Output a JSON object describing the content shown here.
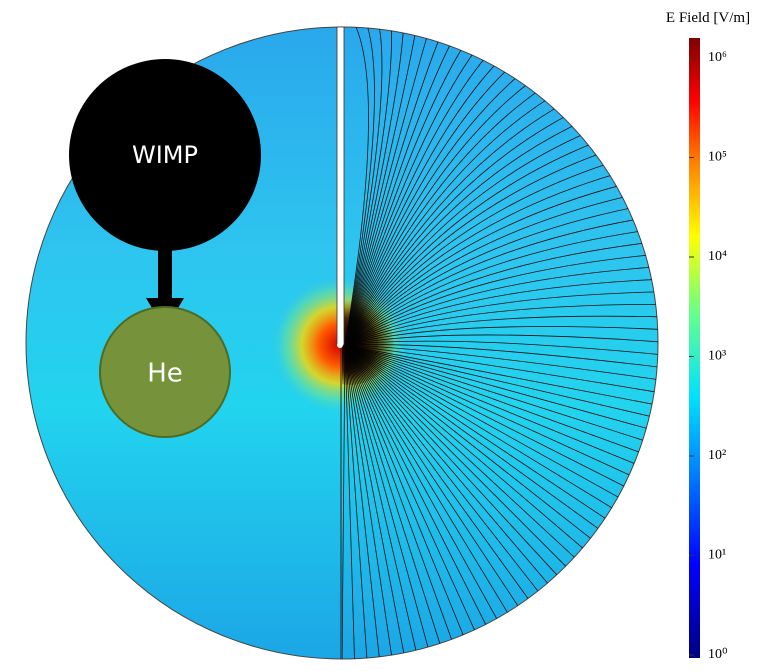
{
  "colorbar": {
    "title": "E Field [V/m]",
    "scale": "log",
    "range": [
      1,
      1000000
    ],
    "ticks": [
      {
        "value": 1000000,
        "label": "10⁶"
      },
      {
        "value": 100000,
        "label": "10⁵"
      },
      {
        "value": 10000,
        "label": "10⁴"
      },
      {
        "value": 1000,
        "label": "10³"
      },
      {
        "value": 100,
        "label": "10²"
      },
      {
        "value": 10,
        "label": "10¹"
      },
      {
        "value": 1,
        "label": "10⁰"
      }
    ]
  },
  "nodes": [
    {
      "label": "WIMP"
    },
    {
      "label": "He"
    }
  ]
}
